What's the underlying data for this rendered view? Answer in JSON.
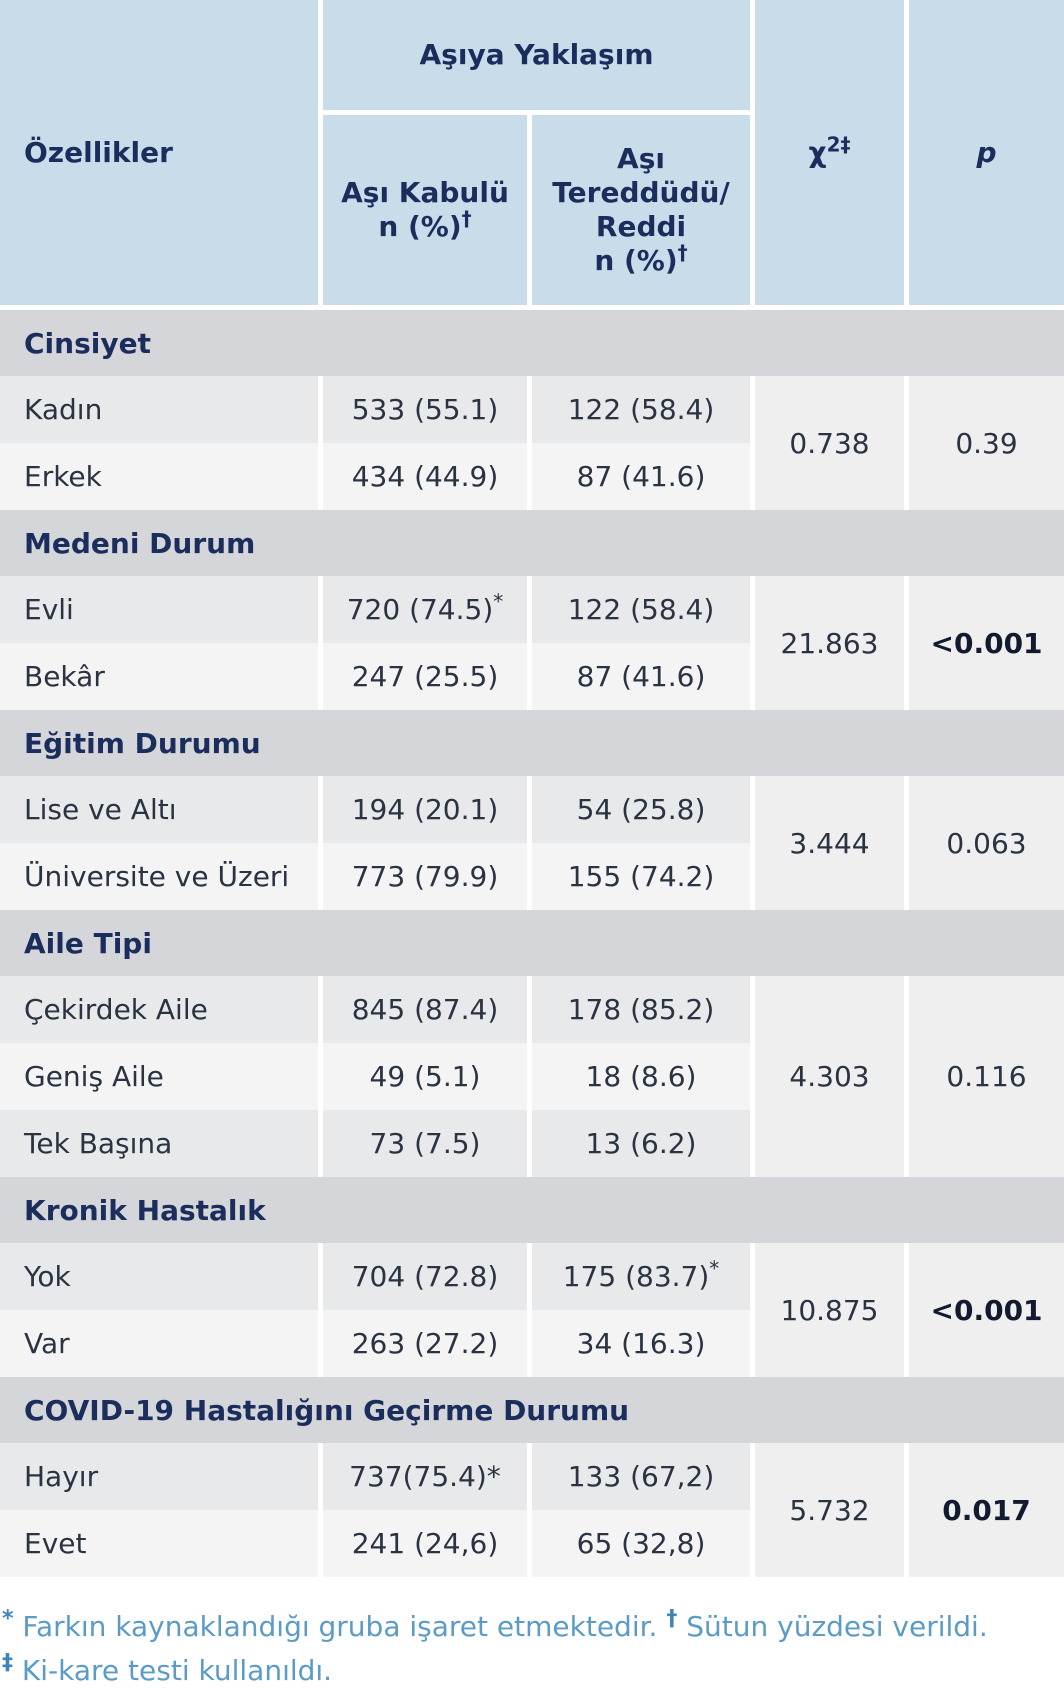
{
  "header": {
    "features": "Özellikler",
    "approach": "Aşıya Yaklaşım",
    "accept_line1": "Aşı Kabulü",
    "accept_line2": "n (%)",
    "accept_mark": "†",
    "hesit_line1": "Aşı",
    "hesit_line2": "Tereddüdü/",
    "hesit_line3": "Reddi",
    "hesit_line4": "n (%)",
    "hesit_mark": "†",
    "chi": "χ",
    "chi_sup": "2‡",
    "p": "p"
  },
  "sections": [
    {
      "title": "Cinsiyet",
      "chi2": "0.738",
      "p": "0.39",
      "rows": [
        {
          "label": "Kadın",
          "accept": "533 (55.1)",
          "accept_mark": "",
          "hesit": "122 (58.4)",
          "hesit_mark": ""
        },
        {
          "label": "Erkek",
          "accept": "434 (44.9)",
          "accept_mark": "",
          "hesit": "87 (41.6)",
          "hesit_mark": ""
        }
      ]
    },
    {
      "title": "Medeni Durum",
      "chi2": "21.863",
      "p": "<0.001",
      "rows": [
        {
          "label": "Evli",
          "accept": "720 (74.5)",
          "accept_mark": "*",
          "hesit": "122 (58.4)",
          "hesit_mark": ""
        },
        {
          "label": "Bekâr",
          "accept": "247 (25.5)",
          "accept_mark": "",
          "hesit": "87 (41.6)",
          "hesit_mark": ""
        }
      ]
    },
    {
      "title": "Eğitim Durumu",
      "chi2": "3.444",
      "p": "0.063",
      "rows": [
        {
          "label": "Lise ve Altı",
          "accept": "194 (20.1)",
          "accept_mark": "",
          "hesit": "54 (25.8)",
          "hesit_mark": ""
        },
        {
          "label": "Üniversite ve Üzeri",
          "accept": "773 (79.9)",
          "accept_mark": "",
          "hesit": "155 (74.2)",
          "hesit_mark": ""
        }
      ]
    },
    {
      "title": "Aile Tipi",
      "chi2": "4.303",
      "p": "0.116",
      "rows": [
        {
          "label": "Çekirdek Aile",
          "accept": "845 (87.4)",
          "accept_mark": "",
          "hesit": "178 (85.2)",
          "hesit_mark": ""
        },
        {
          "label": "Geniş Aile",
          "accept": "49 (5.1)",
          "accept_mark": "",
          "hesit": "18 (8.6)",
          "hesit_mark": ""
        },
        {
          "label": "Tek Başına",
          "accept": "73 (7.5)",
          "accept_mark": "",
          "hesit": "13 (6.2)",
          "hesit_mark": ""
        }
      ]
    },
    {
      "title": "Kronik Hastalık",
      "chi2": "10.875",
      "p": "<0.001",
      "rows": [
        {
          "label": "Yok",
          "accept": "704 (72.8)",
          "accept_mark": "",
          "hesit": "175 (83.7)",
          "hesit_mark": "*"
        },
        {
          "label": "Var",
          "accept": "263 (27.2)",
          "accept_mark": "",
          "hesit": "34 (16.3)",
          "hesit_mark": ""
        }
      ]
    },
    {
      "title": "COVID-19 Hastalığını Geçirme Durumu",
      "chi2": "5.732",
      "p": "0.017",
      "rows": [
        {
          "label": "Hayır",
          "accept": "737(75.4)*",
          "accept_mark": "",
          "hesit": "133 (67,2)",
          "hesit_mark": ""
        },
        {
          "label": "Evet",
          "accept": "241 (24,6)",
          "accept_mark": "",
          "hesit": "65 (32,8)",
          "hesit_mark": ""
        }
      ]
    }
  ],
  "significant_p": [
    "<0.001",
    "0.017"
  ],
  "footnote": {
    "sym1": "*",
    "text1": " Farkın kaynaklandığı gruba işaret etmektedir. ",
    "sym2": "†",
    "text2": " Sütun yüzdesi verildi.",
    "sym3": "‡",
    "text3": " Ki-kare testi kullanıldı."
  },
  "colors": {
    "header_bg": "#c9dcea",
    "section_bg": "#d4d6d9",
    "row_a": "#e8e9ea",
    "row_b": "#f4f4f5",
    "title_text": "#1b2d5c",
    "footnote_text": "#5a9cc6"
  }
}
